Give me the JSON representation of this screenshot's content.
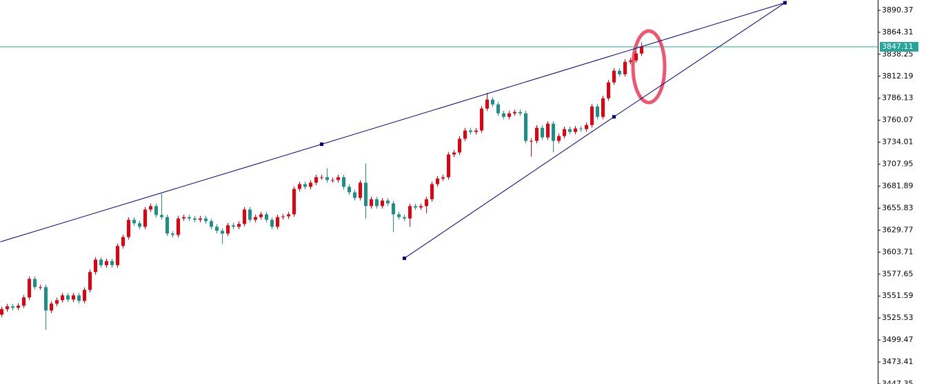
{
  "chart_data": {
    "type": "candlestick",
    "up_color": "#e3000f",
    "down_color": "#1d8f86",
    "ylim": [
      3447.35,
      3902.59
    ],
    "yticks": [
      3890.37,
      3864.31,
      3838.25,
      3812.19,
      3786.13,
      3760.07,
      3734.01,
      3707.95,
      3681.89,
      3655.83,
      3629.77,
      3603.71,
      3577.65,
      3551.59,
      3525.53,
      3499.47,
      3473.41,
      3447.35
    ],
    "current_price": 3847.11,
    "current_price_color": "#26a69a",
    "trendline_color": "#000080",
    "open": [
      3529.6,
      3536.1,
      3539.4,
      3537.7,
      3540.2,
      3550.0,
      3571.9,
      3562.2,
      3562.2,
      3534.5,
      3542.6,
      3546.7,
      3552.4,
      3547.5,
      3552.4,
      3545.9,
      3558.9,
      3580.1,
      3594.8,
      3588.2,
      3593.1,
      3588.2,
      3611.0,
      3621.6,
      3642.0,
      3637.9,
      3633.8,
      3654.2,
      3658.3,
      3647.7,
      3645.2,
      3625.7,
      3624.1,
      3643.6,
      3645.2,
      3643.6,
      3642.0,
      3643.6,
      3640.4,
      3633.8,
      3629.0,
      3625.7,
      3635.5,
      3633.8,
      3637.1,
      3654.2,
      3642.0,
      3645.2,
      3648.5,
      3642.0,
      3633.8,
      3645.2,
      3646.1,
      3648.5,
      3678.6,
      3684.3,
      3681.1,
      3686.0,
      3692.5,
      3692.5,
      3689.2,
      3689.2,
      3692.5,
      3681.1,
      3674.6,
      3668.0,
      3686.0,
      3658.3,
      3666.4,
      3658.3,
      3664.8,
      3661.5,
      3648.5,
      3645.2,
      3643.6,
      3658.3,
      3656.6,
      3658.3,
      3666.4,
      3684.3,
      3690.9,
      3692.5,
      3719.4,
      3721.8,
      3738.1,
      3747.9,
      3746.2,
      3747.9,
      3773.9,
      3784.5,
      3778.8,
      3768.2,
      3764.1,
      3768.2,
      3769.8,
      3768.2,
      3735.6,
      3735.6,
      3751.1,
      3739.7,
      3756.0,
      3735.6,
      3741.3,
      3749.5,
      3746.2,
      3750.3,
      3749.5,
      3754.4,
      3776.4,
      3764.1,
      3786.1,
      3804.9,
      3818.7,
      3814.6,
      3829.3,
      3830.9,
      3839.1
    ],
    "high": [
      3539.1,
      3542.4,
      3542.4,
      3543.2,
      3553.0,
      3574.9,
      3574.9,
      3565.2,
      3565.2,
      3545.6,
      3549.7,
      3555.4,
      3555.4,
      3555.4,
      3555.4,
      3561.9,
      3583.1,
      3597.8,
      3597.8,
      3596.1,
      3596.1,
      3614.0,
      3624.6,
      3645.0,
      3645.0,
      3640.9,
      3657.2,
      3661.3,
      3661.3,
      3672.9,
      3648.2,
      3628.7,
      3646.6,
      3648.2,
      3648.2,
      3646.6,
      3646.6,
      3646.6,
      3643.4,
      3636.8,
      3632.0,
      3638.5,
      3638.5,
      3640.1,
      3657.2,
      3657.2,
      3648.2,
      3651.5,
      3651.5,
      3645.0,
      3648.2,
      3649.1,
      3651.5,
      3681.6,
      3687.3,
      3687.3,
      3689.0,
      3695.5,
      3695.5,
      3703.1,
      3692.2,
      3695.5,
      3695.5,
      3684.1,
      3677.6,
      3689.0,
      3708.8,
      3669.4,
      3669.4,
      3667.8,
      3667.8,
      3664.5,
      3651.5,
      3648.2,
      3661.3,
      3661.3,
      3661.3,
      3669.4,
      3687.3,
      3693.9,
      3695.5,
      3722.4,
      3724.8,
      3741.1,
      3750.9,
      3750.9,
      3750.9,
      3776.9,
      3792.6,
      3787.5,
      3781.8,
      3771.2,
      3771.2,
      3772.8,
      3772.8,
      3771.2,
      3738.6,
      3754.1,
      3754.1,
      3759.0,
      3759.0,
      3744.3,
      3752.5,
      3752.5,
      3753.3,
      3753.3,
      3757.4,
      3779.4,
      3779.4,
      3789.1,
      3807.9,
      3821.7,
      3821.7,
      3832.3,
      3833.9,
      3842.1,
      3852.1
    ],
    "low": [
      3526.6,
      3533.1,
      3534.7,
      3534.7,
      3537.2,
      3547.0,
      3559.2,
      3559.2,
      3511.7,
      3531.5,
      3539.6,
      3543.7,
      3544.5,
      3544.5,
      3542.9,
      3542.9,
      3555.9,
      3577.1,
      3585.2,
      3585.2,
      3585.2,
      3585.2,
      3608.0,
      3618.6,
      3634.9,
      3630.8,
      3630.8,
      3651.2,
      3644.7,
      3642.2,
      3622.7,
      3621.1,
      3621.1,
      3640.6,
      3640.6,
      3639.0,
      3639.0,
      3637.4,
      3630.8,
      3626.0,
      3613.5,
      3622.7,
      3630.8,
      3630.8,
      3634.1,
      3639.0,
      3639.0,
      3642.2,
      3639.0,
      3630.8,
      3630.8,
      3642.2,
      3643.1,
      3645.5,
      3675.6,
      3678.1,
      3678.1,
      3683.0,
      3689.5,
      3686.2,
      3686.2,
      3686.2,
      3678.1,
      3671.6,
      3665.0,
      3665.0,
      3643.6,
      3655.3,
      3655.3,
      3655.3,
      3658.5,
      3627.3,
      3642.2,
      3640.6,
      3633.8,
      3653.6,
      3653.6,
      3649.9,
      3663.4,
      3681.3,
      3687.9,
      3689.5,
      3716.4,
      3718.8,
      3735.1,
      3743.2,
      3743.2,
      3744.9,
      3770.9,
      3775.8,
      3765.2,
      3761.1,
      3761.1,
      3765.2,
      3765.2,
      3732.6,
      3716.9,
      3732.6,
      3736.7,
      3736.7,
      3722.0,
      3732.6,
      3738.3,
      3743.2,
      3743.2,
      3746.5,
      3746.5,
      3751.4,
      3761.1,
      3761.1,
      3783.1,
      3801.9,
      3811.6,
      3811.6,
      3826.3,
      3828.1,
      3836.1
    ],
    "close": [
      3536.1,
      3539.4,
      3537.7,
      3540.2,
      3550.0,
      3571.9,
      3562.2,
      3562.2,
      3534.5,
      3542.6,
      3546.7,
      3552.4,
      3547.5,
      3552.4,
      3545.9,
      3558.9,
      3580.1,
      3594.8,
      3588.2,
      3593.1,
      3588.2,
      3611.0,
      3621.6,
      3642.0,
      3637.9,
      3633.8,
      3654.2,
      3658.3,
      3647.7,
      3645.2,
      3625.7,
      3624.1,
      3643.6,
      3645.2,
      3643.6,
      3642.0,
      3643.6,
      3640.4,
      3633.8,
      3629.0,
      3625.7,
      3635.5,
      3633.8,
      3637.1,
      3654.2,
      3642.0,
      3645.2,
      3648.5,
      3642.0,
      3633.8,
      3645.2,
      3646.1,
      3648.5,
      3678.6,
      3684.3,
      3681.1,
      3686.0,
      3692.5,
      3692.5,
      3689.2,
      3689.2,
      3692.5,
      3681.1,
      3674.6,
      3668.0,
      3686.0,
      3658.3,
      3666.4,
      3658.3,
      3664.8,
      3661.5,
      3648.5,
      3645.2,
      3643.6,
      3658.3,
      3656.6,
      3658.3,
      3666.4,
      3684.3,
      3690.9,
      3692.5,
      3719.4,
      3721.8,
      3738.1,
      3747.9,
      3746.2,
      3747.9,
      3773.9,
      3784.5,
      3778.8,
      3768.2,
      3764.1,
      3768.2,
      3769.8,
      3768.2,
      3735.6,
      3735.6,
      3751.1,
      3739.7,
      3756.0,
      3735.6,
      3741.3,
      3749.5,
      3746.2,
      3750.3,
      3749.5,
      3754.4,
      3776.4,
      3764.1,
      3786.1,
      3804.9,
      3818.7,
      3814.6,
      3829.3,
      3830.9,
      3839.1,
      3847.11
    ],
    "trendlines": [
      {
        "x": [
          -0.25,
          58,
          142
        ],
        "y": [
          3615.9,
          3731.6,
          3899.3
        ]
      },
      {
        "x": [
          73,
          111,
          142
        ],
        "y": [
          3596.4,
          3764.1,
          3899.3
        ]
      }
    ]
  }
}
